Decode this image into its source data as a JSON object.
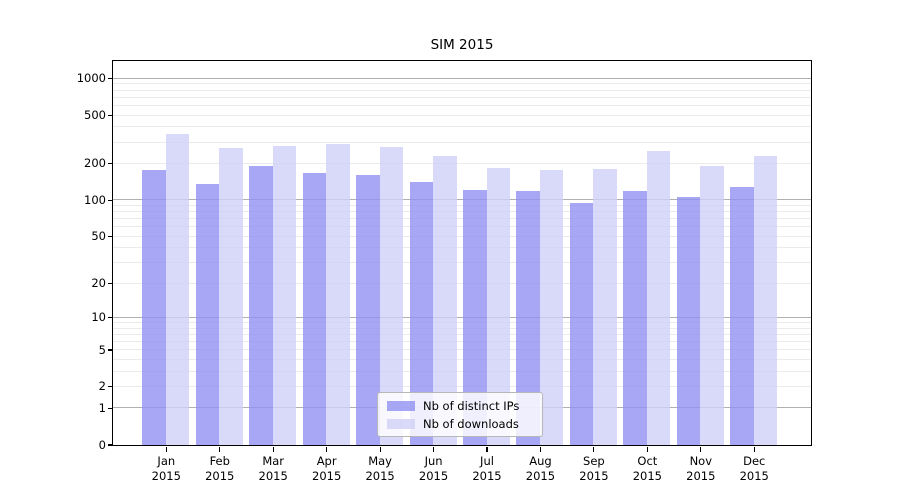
{
  "title": "SIM 2015",
  "chart_data": {
    "type": "bar",
    "title": "SIM 2015",
    "categories": [
      "Jan",
      "Feb",
      "Mar",
      "Apr",
      "May",
      "Jun",
      "Jul",
      "Aug",
      "Sep",
      "Oct",
      "Nov",
      "Dec"
    ],
    "category_year_suffix": "2015",
    "series": [
      {
        "name": "Nb of distinct IPs",
        "color": "#9191f2",
        "alpha": 0.8,
        "values": [
          178,
          136,
          189,
          167,
          162,
          141,
          121,
          119,
          94,
          119,
          106,
          129
        ]
      },
      {
        "name": "Nb of downloads",
        "color": "#d0d0f7",
        "alpha": 0.8,
        "values": [
          348,
          266,
          281,
          291,
          272,
          232,
          182,
          178,
          180,
          255,
          192,
          231
        ]
      }
    ],
    "xlabel": "",
    "ylabel": "",
    "y_scale": "log10(1+x)",
    "ylim": [
      0,
      1400
    ],
    "y_ticks": [
      1000,
      500,
      200,
      100,
      50,
      20,
      10,
      5,
      2,
      1,
      0
    ],
    "grid": "major+minor horizontal",
    "grid_major_values": [
      1,
      10,
      100,
      1000
    ],
    "grid_minor_values": [
      2,
      3,
      4,
      5,
      6,
      7,
      8,
      9,
      20,
      30,
      40,
      50,
      60,
      70,
      80,
      90,
      200,
      300,
      400,
      500,
      600,
      700,
      800,
      900
    ],
    "legend_position": "inside lower center",
    "colors": {
      "grid_major": "#b0b0b0",
      "grid_minor": "#ebebeb",
      "axis": "#000000",
      "background": "#ffffff"
    }
  }
}
